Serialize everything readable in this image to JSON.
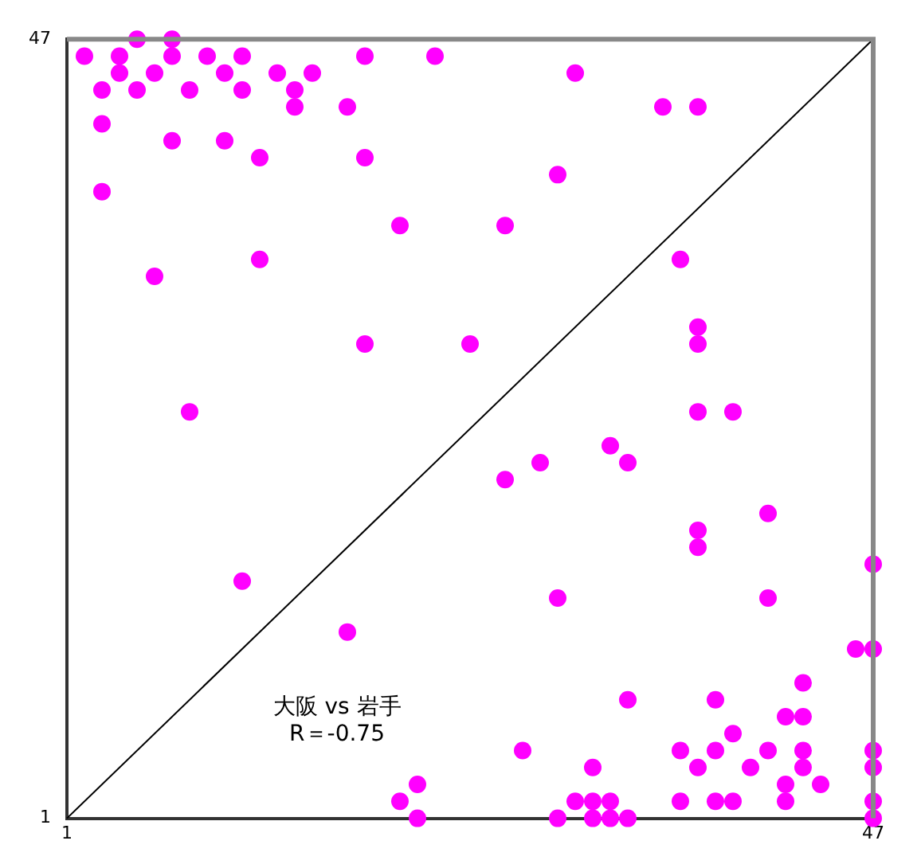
{
  "chart_data": {
    "type": "scatter",
    "annotations": [
      "大阪 vs 岩手",
      "R＝-0.75"
    ],
    "xlim": [
      1,
      47
    ],
    "ylim": [
      1,
      47
    ],
    "xticks": [
      1,
      47
    ],
    "yticks": [
      1,
      47
    ],
    "marker": "circle",
    "series": [
      {
        "type": "line",
        "color": "#000000",
        "x": [
          1,
          47
        ],
        "values": [
          1,
          47
        ],
        "marker": "none"
      },
      {
        "color": "#ff00ff",
        "x": [
          5,
          7,
          2,
          4,
          7,
          9,
          11,
          18,
          22,
          4,
          6,
          10,
          13,
          15,
          30,
          3,
          5,
          8,
          11,
          14,
          14,
          17,
          3,
          7,
          10,
          12,
          18,
          35,
          37,
          29,
          3,
          20,
          26,
          12,
          36,
          6,
          18,
          24,
          37,
          37,
          8,
          37,
          39,
          32,
          28,
          33,
          26,
          41,
          37,
          37,
          47,
          29,
          41,
          46,
          47,
          43,
          33,
          38,
          42,
          43,
          39,
          27,
          36,
          38,
          41,
          43,
          47,
          31,
          37,
          40,
          43,
          47,
          42,
          44,
          30,
          31,
          32,
          36,
          38,
          39,
          42,
          47,
          29,
          31,
          32,
          33,
          47,
          11,
          17,
          21,
          20,
          21
        ],
        "values": [
          47,
          47,
          46,
          46,
          46,
          46,
          46,
          46,
          46,
          45,
          45,
          45,
          45,
          45,
          45,
          44,
          44,
          44,
          44,
          44,
          43,
          43,
          42,
          41,
          41,
          40,
          40,
          43,
          43,
          39,
          38,
          36,
          36,
          34,
          34,
          33,
          29,
          29,
          30,
          29,
          25,
          25,
          25,
          23,
          22,
          22,
          21,
          19,
          18,
          17,
          16,
          14,
          14,
          11,
          11,
          9,
          8,
          8,
          7,
          7,
          6,
          5,
          5,
          5,
          5,
          5,
          5,
          4,
          4,
          4,
          4,
          4,
          3,
          3,
          2,
          2,
          2,
          2,
          2,
          2,
          2,
          2,
          1,
          1,
          1,
          1,
          1,
          15,
          12,
          3,
          2,
          1
        ]
      }
    ]
  }
}
